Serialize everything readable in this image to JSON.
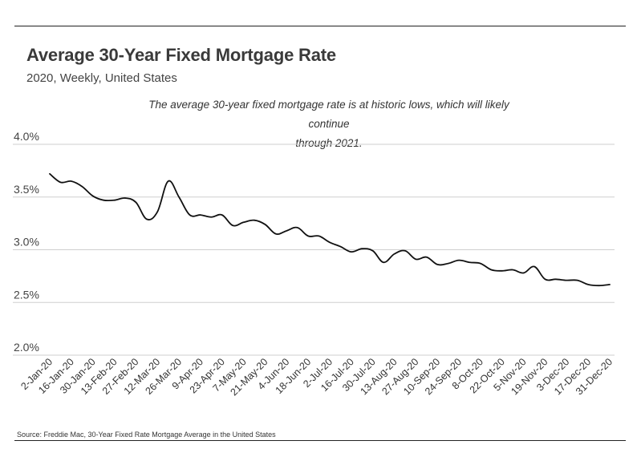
{
  "header": {
    "title": "Average 30-Year Fixed Mortgage Rate",
    "subtitle": "2020, Weekly, United States"
  },
  "annotation": {
    "line1": "The average 30-year fixed mortgage rate is at historic lows, which will likely continue",
    "line2": "through 2021."
  },
  "source": "Source:  Freddie Mac, 30-Year Fixed Rate Mortgage Average in the United States",
  "colors": {
    "line": "#111111",
    "grid": "#cfcfcf",
    "text": "#333333"
  },
  "chart_data": {
    "type": "line",
    "title": "Average 30-Year Fixed Mortgage Rate",
    "subtitle": "2020, Weekly, United States",
    "xlabel": "",
    "ylabel": "",
    "ylim": [
      2.0,
      4.0
    ],
    "y_ticks": [
      "2.0%",
      "2.5%",
      "3.0%",
      "3.5%",
      "4.0%"
    ],
    "y_tick_values": [
      2.0,
      2.5,
      3.0,
      3.5,
      4.0
    ],
    "grid": "horizontal",
    "x_tick_labels": [
      "2-Jan-20",
      "16-Jan-20",
      "30-Jan-20",
      "13-Feb-20",
      "27-Feb-20",
      "12-Mar-20",
      "26-Mar-20",
      "9-Apr-20",
      "23-Apr-20",
      "7-May-20",
      "21-May-20",
      "4-Jun-20",
      "18-Jun-20",
      "2-Jul-20",
      "16-Jul-20",
      "30-Jul-20",
      "13-Aug-20",
      "27-Aug-20",
      "10-Sep-20",
      "24-Sep-20",
      "8-Oct-20",
      "22-Oct-20",
      "5-Nov-20",
      "19-Nov-20",
      "3-Dec-20",
      "17-Dec-20",
      "31-Dec-20"
    ],
    "x": [
      "2-Jan-20",
      "9-Jan-20",
      "16-Jan-20",
      "23-Jan-20",
      "30-Jan-20",
      "6-Feb-20",
      "13-Feb-20",
      "20-Feb-20",
      "27-Feb-20",
      "5-Mar-20",
      "12-Mar-20",
      "19-Mar-20",
      "26-Mar-20",
      "2-Apr-20",
      "9-Apr-20",
      "16-Apr-20",
      "23-Apr-20",
      "30-Apr-20",
      "7-May-20",
      "14-May-20",
      "21-May-20",
      "28-May-20",
      "4-Jun-20",
      "11-Jun-20",
      "18-Jun-20",
      "25-Jun-20",
      "2-Jul-20",
      "9-Jul-20",
      "16-Jul-20",
      "23-Jul-20",
      "30-Jul-20",
      "6-Aug-20",
      "13-Aug-20",
      "20-Aug-20",
      "27-Aug-20",
      "3-Sep-20",
      "10-Sep-20",
      "17-Sep-20",
      "24-Sep-20",
      "1-Oct-20",
      "8-Oct-20",
      "15-Oct-20",
      "22-Oct-20",
      "29-Oct-20",
      "5-Nov-20",
      "12-Nov-20",
      "19-Nov-20",
      "26-Nov-20",
      "3-Dec-20",
      "10-Dec-20",
      "17-Dec-20",
      "24-Dec-20",
      "31-Dec-20"
    ],
    "series": [
      {
        "values": [
          3.72,
          3.64,
          3.65,
          3.6,
          3.51,
          3.47,
          3.47,
          3.49,
          3.45,
          3.29,
          3.36,
          3.65,
          3.5,
          3.33,
          3.33,
          3.31,
          3.33,
          3.23,
          3.26,
          3.28,
          3.24,
          3.15,
          3.18,
          3.21,
          3.13,
          3.13,
          3.07,
          3.03,
          2.98,
          3.01,
          2.99,
          2.88,
          2.96,
          2.99,
          2.91,
          2.93,
          2.86,
          2.87,
          2.9,
          2.88,
          2.87,
          2.81,
          2.8,
          2.81,
          2.78,
          2.84,
          2.72,
          2.72,
          2.71,
          2.71,
          2.67,
          2.66,
          2.67
        ]
      }
    ]
  }
}
